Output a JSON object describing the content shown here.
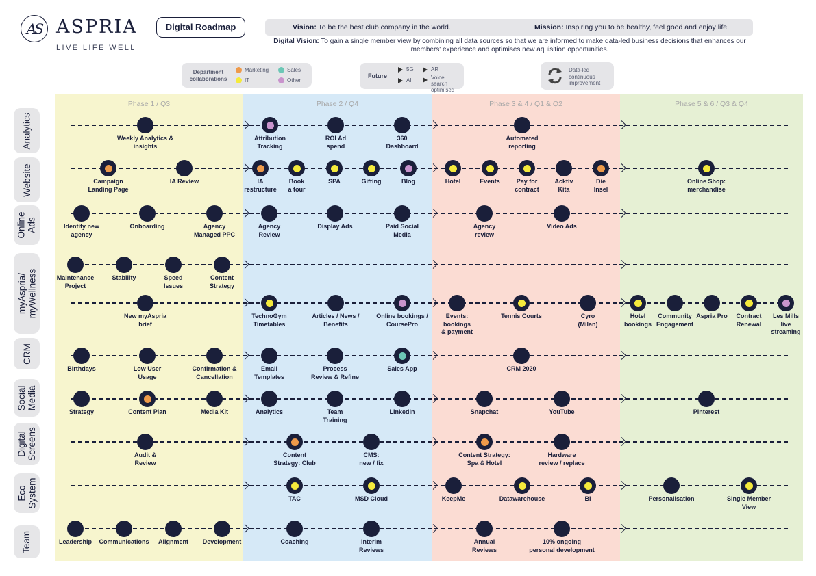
{
  "header": {
    "logo_mark": "AS",
    "brand": "ASPRIA",
    "tagline": "LIVE LIFE WELL",
    "title": "Digital Roadmap",
    "vision_label": "Vision:",
    "vision": "To be the best club company in the world.",
    "mission_label": "Mission:",
    "mission": "Inspiring you to be healthy, feel good and enjoy life.",
    "digital_vision_label": "Digital Vision:",
    "digital_vision": "To gain a single member view by combining all data sources so that we are informed to make data-led business decisions that enhances our members' experience and optimises new aquisition opportunities."
  },
  "legend": {
    "title": "Department collaborations",
    "items": [
      {
        "label": "Marketing",
        "color": "#ee9a4a"
      },
      {
        "label": "Sales",
        "color": "#6cc7b6"
      },
      {
        "label": "IT",
        "color": "#f5ea3c"
      },
      {
        "label": "Other",
        "color": "#c994cd"
      }
    ],
    "future_title": "Future",
    "future_items": [
      "5G",
      "AR",
      "AI",
      "Voice search optimised"
    ],
    "improvement": "Data-led continuous improvement"
  },
  "phases": [
    {
      "label": "Phase 1 / Q3",
      "color": "#f7f5ce"
    },
    {
      "label": "Phase 2 / Q4",
      "color": "#d6e9f7"
    },
    {
      "label": "Phase 3 & 4 / Q1 & Q2",
      "color": "#fbdcd3"
    },
    {
      "label": "Phase 5 & 6 / Q3 & Q4",
      "color": "#e6f0d4"
    }
  ],
  "colors": {
    "none": null,
    "marketing": "#ee9a4a",
    "sales": "#6cc7b6",
    "it": "#f5ea3c",
    "other": "#c994cd"
  },
  "rows": [
    {
      "label": "Analytics"
    },
    {
      "label": "Website"
    },
    {
      "label": "Online Ads"
    },
    {
      "label": "myAspria/ myWellness"
    },
    {
      "label": "CRM"
    },
    {
      "label": "Social Media"
    },
    {
      "label": "Digital Screens"
    },
    {
      "label": "Eco System"
    },
    {
      "label": "Team"
    }
  ],
  "lines": [
    {
      "milestones": [
        {
          "label": "Weekly Analytics &\ninsights",
          "dept": "none"
        },
        {
          "label": "Attribution\nTracking",
          "dept": "other"
        },
        {
          "label": "ROI Ad\nspend",
          "dept": "none"
        },
        {
          "label": "360\nDashboard",
          "dept": "none"
        },
        {
          "label": "Automated\nreporting",
          "dept": "none"
        }
      ]
    },
    {
      "milestones": [
        {
          "label": "Campaign\nLanding Page",
          "dept": "marketing"
        },
        {
          "label": "IA Review",
          "dept": "none"
        },
        {
          "label": "IA\nrestructure",
          "dept": "marketing"
        },
        {
          "label": "Book\na tour",
          "dept": "it"
        },
        {
          "label": "SPA",
          "dept": "it"
        },
        {
          "label": "Gifting",
          "dept": "it"
        },
        {
          "label": "Blog",
          "dept": "other"
        },
        {
          "label": "Hotel",
          "dept": "it"
        },
        {
          "label": "Events",
          "dept": "it"
        },
        {
          "label": "Pay for\ncontract",
          "dept": "it"
        },
        {
          "label": "Acktiv\nKita",
          "dept": "none"
        },
        {
          "label": "Die\nInsel",
          "dept": "marketing"
        },
        {
          "label": "Online Shop:\nmerchandise",
          "dept": "it"
        }
      ]
    },
    {
      "milestones": [
        {
          "label": "Identify new\nagency",
          "dept": "none"
        },
        {
          "label": "Onboarding",
          "dept": "none"
        },
        {
          "label": "Agency\nManaged PPC",
          "dept": "none"
        },
        {
          "label": "Agency\nReview",
          "dept": "none"
        },
        {
          "label": "Display Ads",
          "dept": "none"
        },
        {
          "label": "Paid Social\nMedia",
          "dept": "none"
        },
        {
          "label": "Agency\nreview",
          "dept": "none"
        },
        {
          "label": "Video Ads",
          "dept": "none"
        }
      ]
    },
    {
      "milestones": [
        {
          "label": "Maintenance\nProject",
          "dept": "none"
        },
        {
          "label": "Stability",
          "dept": "none"
        },
        {
          "label": "Speed\nIssues",
          "dept": "none"
        },
        {
          "label": "Content\nStrategy",
          "dept": "none"
        }
      ]
    },
    {
      "milestones": [
        {
          "label": "New myAspria\nbrief",
          "dept": "none"
        },
        {
          "label": "TechnoGym\nTimetables",
          "dept": "it"
        },
        {
          "label": "Articles / News /\nBenefits",
          "dept": "none"
        },
        {
          "label": "Online bookings /\nCoursePro",
          "dept": "other"
        },
        {
          "label": "Events:\nbookings\n& payment",
          "dept": "none"
        },
        {
          "label": "Tennis Courts",
          "dept": "it"
        },
        {
          "label": "Cyro\n(Milan)",
          "dept": "none"
        },
        {
          "label": "Hotel\nbookings",
          "dept": "it"
        },
        {
          "label": "Community\nEngagement",
          "dept": "none"
        },
        {
          "label": "Aspria Pro",
          "dept": "none"
        },
        {
          "label": "Contract\nRenewal",
          "dept": "it"
        },
        {
          "label": "Les Mills\nlive\nstreaming",
          "dept": "other"
        }
      ]
    },
    {
      "milestones": [
        {
          "label": "Birthdays",
          "dept": "none"
        },
        {
          "label": "Low User\nUsage",
          "dept": "none"
        },
        {
          "label": "Confirmation &\nCancellation",
          "dept": "none"
        },
        {
          "label": "Email\nTemplates",
          "dept": "none"
        },
        {
          "label": "Process\nReview & Refine",
          "dept": "none"
        },
        {
          "label": "Sales App",
          "dept": "sales"
        },
        {
          "label": "CRM 2020",
          "dept": "none"
        }
      ]
    },
    {
      "milestones": [
        {
          "label": "Strategy",
          "dept": "none"
        },
        {
          "label": "Content Plan",
          "dept": "marketing"
        },
        {
          "label": "Media Kit",
          "dept": "none"
        },
        {
          "label": "Analytics",
          "dept": "none"
        },
        {
          "label": "Team\nTraining",
          "dept": "none"
        },
        {
          "label": "LinkedIn",
          "dept": "none"
        },
        {
          "label": "Snapchat",
          "dept": "none"
        },
        {
          "label": "YouTube",
          "dept": "none"
        },
        {
          "label": "Pinterest",
          "dept": "none"
        }
      ]
    },
    {
      "milestones": [
        {
          "label": "Audit &\nReview",
          "dept": "none"
        },
        {
          "label": "Content\nStrategy: Club",
          "dept": "marketing"
        },
        {
          "label": "CMS:\nnew / fix",
          "dept": "none"
        },
        {
          "label": "Content Strategy:\nSpa & Hotel",
          "dept": "marketing"
        },
        {
          "label": "Hardware\nreview / replace",
          "dept": "none"
        }
      ]
    },
    {
      "milestones": [
        {
          "label": "TAC",
          "dept": "it"
        },
        {
          "label": "MSD Cloud",
          "dept": "it"
        },
        {
          "label": "KeepMe",
          "dept": "none"
        },
        {
          "label": "Datawarehouse",
          "dept": "it"
        },
        {
          "label": "BI",
          "dept": "it"
        },
        {
          "label": "Personalisation",
          "dept": "none"
        },
        {
          "label": "Single Member\nView",
          "dept": "it"
        }
      ]
    },
    {
      "milestones": [
        {
          "label": "Leadership",
          "dept": "none"
        },
        {
          "label": "Communications",
          "dept": "none"
        },
        {
          "label": "Alignment",
          "dept": "none"
        },
        {
          "label": "Development",
          "dept": "none"
        },
        {
          "label": "Coaching",
          "dept": "none"
        },
        {
          "label": "Interim\nReviews",
          "dept": "none"
        },
        {
          "label": "Annual\nReviews",
          "dept": "none"
        },
        {
          "label": "10% ongoing\npersonal development",
          "dept": "none"
        }
      ]
    }
  ]
}
